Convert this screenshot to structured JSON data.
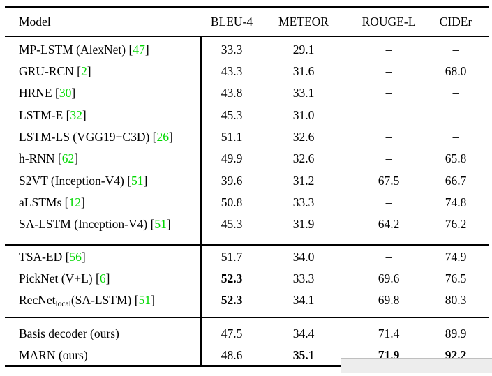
{
  "colors": {
    "citation_green": "#00d800"
  },
  "table": {
    "columns": [
      "Model",
      "BLEU-4",
      "METEOR",
      "ROUGE-L",
      "CIDEr"
    ],
    "missing_value_glyph": "–",
    "groups": [
      {
        "rows": [
          {
            "name": "MP-LSTM (AlexNet)",
            "cite": "47",
            "values": [
              "33.3",
              "29.1",
              "–",
              "–"
            ],
            "bold": [
              0,
              0,
              0,
              0
            ]
          },
          {
            "name": "GRU-RCN",
            "cite": "2",
            "values": [
              "43.3",
              "31.6",
              "–",
              "68.0"
            ],
            "bold": [
              0,
              0,
              0,
              0
            ]
          },
          {
            "name": "HRNE",
            "cite": "30",
            "values": [
              "43.8",
              "33.1",
              "–",
              "–"
            ],
            "bold": [
              0,
              0,
              0,
              0
            ]
          },
          {
            "name": "LSTM-E",
            "cite": "32",
            "values": [
              "45.3",
              "31.0",
              "–",
              "–"
            ],
            "bold": [
              0,
              0,
              0,
              0
            ]
          },
          {
            "name": "LSTM-LS (VGG19+C3D)",
            "cite": "26",
            "values": [
              "51.1",
              "32.6",
              "–",
              "–"
            ],
            "bold": [
              0,
              0,
              0,
              0
            ]
          },
          {
            "name": "h-RNN",
            "cite": "62",
            "values": [
              "49.9",
              "32.6",
              "–",
              "65.8"
            ],
            "bold": [
              0,
              0,
              0,
              0
            ]
          },
          {
            "name": "S2VT (Inception-V4)",
            "cite": "51",
            "values": [
              "39.6",
              "31.2",
              "67.5",
              "66.7"
            ],
            "bold": [
              0,
              0,
              0,
              0
            ]
          },
          {
            "name": "aLSTMs",
            "cite": "12",
            "values": [
              "50.8",
              "33.3",
              "–",
              "74.8"
            ],
            "bold": [
              0,
              0,
              0,
              0
            ]
          },
          {
            "name": "SA-LSTM (Inception-V4)",
            "cite": "51",
            "values": [
              "45.3",
              "31.9",
              "64.2",
              "76.2"
            ],
            "bold": [
              0,
              0,
              0,
              0
            ]
          }
        ]
      },
      {
        "rows": [
          {
            "name": "TSA-ED",
            "cite": "56",
            "values": [
              "51.7",
              "34.0",
              "–",
              "74.9"
            ],
            "bold": [
              0,
              0,
              0,
              0
            ]
          },
          {
            "name": "PickNet (V+L)",
            "cite": "6",
            "values": [
              "52.3",
              "33.3",
              "69.6",
              "76.5"
            ],
            "bold": [
              1,
              0,
              0,
              0
            ]
          },
          {
            "name": "RecNet",
            "subscript": "local",
            "name_rest": "(SA-LSTM)",
            "cite": "51",
            "values": [
              "52.3",
              "34.1",
              "69.8",
              "80.3"
            ],
            "bold": [
              1,
              0,
              0,
              0
            ]
          }
        ]
      },
      {
        "rows": [
          {
            "name": "Basis decoder (ours)",
            "values": [
              "47.5",
              "34.4",
              "71.4",
              "89.9"
            ],
            "bold": [
              0,
              0,
              0,
              0
            ]
          },
          {
            "name": "MARN (ours)",
            "values": [
              "48.6",
              "35.1",
              "71.9",
              "92.2"
            ],
            "bold": [
              0,
              1,
              1,
              1
            ]
          }
        ]
      }
    ]
  }
}
